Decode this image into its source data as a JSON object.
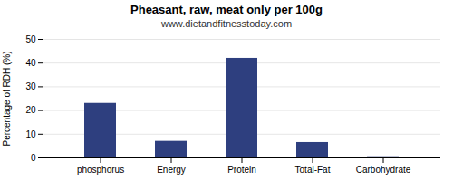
{
  "chart_data": {
    "type": "bar",
    "title": "Pheasant, raw, meat only per 100g",
    "subtitle": "www.dietandfitnesstoday.com",
    "categories": [
      "phosphorus",
      "Energy",
      "Protein",
      "Total-Fat",
      "Carbohydrate"
    ],
    "values": [
      23,
      7,
      42,
      6.5,
      0.5
    ],
    "color": "#2e3f7f",
    "ylabel": "Percentage of RDH (%)",
    "ylim": [
      0,
      50
    ],
    "yticks": [
      0,
      10,
      20,
      30,
      40,
      50
    ],
    "grid": true
  }
}
